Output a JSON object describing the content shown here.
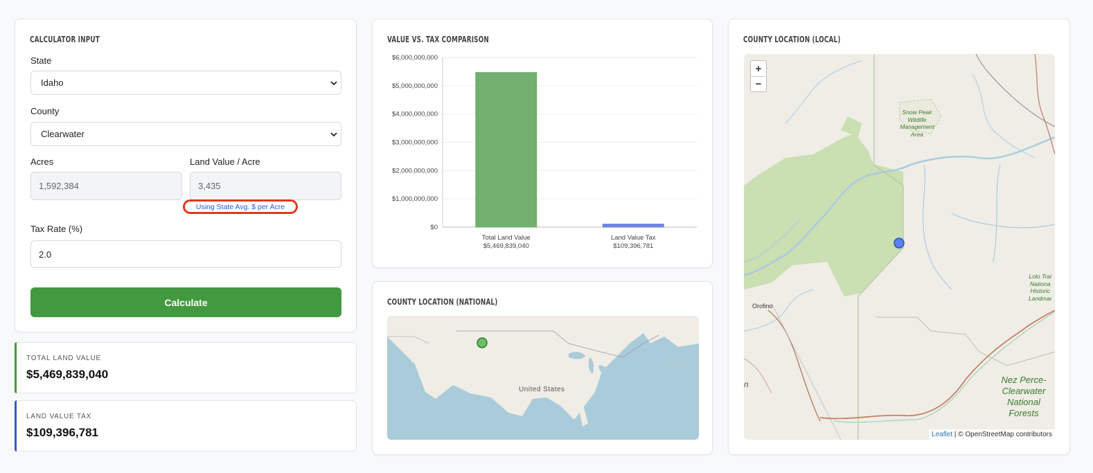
{
  "input": {
    "title": "CALCULATOR INPUT",
    "state_label": "State",
    "state_value": "Idaho",
    "county_label": "County",
    "county_value": "Clearwater",
    "acres_label": "Acres",
    "acres_value": "1,592,384",
    "lvpa_label": "Land Value / Acre",
    "lvpa_value": "3,435",
    "lvpa_note": "Using State Avg. $ per Acre",
    "tax_label": "Tax Rate (%)",
    "tax_value": "2.0",
    "calc_label": "Calculate"
  },
  "results": {
    "total_label": "TOTAL LAND VALUE",
    "total_value": "$5,469,839,040",
    "tax_label": "LAND VALUE TAX",
    "tax_value": "$109,396,781"
  },
  "comparison": {
    "title": "VALUE VS. TAX COMPARISON"
  },
  "chart_data": {
    "type": "bar",
    "categories": [
      "Total Land Value",
      "Land Value Tax"
    ],
    "category_sublabels": [
      "$5,469,839,040",
      "$109,396,781"
    ],
    "values": [
      5469839040,
      109396781
    ],
    "colors": [
      "#71b06f",
      "#6f84e3"
    ],
    "ylim": [
      0,
      6000000000
    ],
    "yticks": [
      "$0",
      "$1,000,000,000",
      "$2,000,000,000",
      "$3,000,000,000",
      "$4,000,000,000",
      "$5,000,000,000",
      "$6,000,000,000"
    ],
    "ytick_values": [
      0,
      1000000000,
      2000000000,
      3000000000,
      4000000000,
      5000000000,
      6000000000
    ],
    "grid": true
  },
  "national": {
    "title": "COUNTY LOCATION (NATIONAL)",
    "country_label": "United States"
  },
  "local": {
    "title": "COUNTY LOCATION (LOCAL)",
    "zoom_in": "+",
    "zoom_out": "−",
    "labels": {
      "snow_peak": "Snow Peak\nWildlife\nManagement\nArea",
      "orofino": "Orofino",
      "lolo": "Lolo Trai\nNationa\nHistoric\nLandmar",
      "nez_perce": "Nez Perce-\nClearwater\nNational\nForests",
      "edge": "n"
    },
    "attribution_link": "Leaflet",
    "attribution_text": " | © OpenStreetMap contributors"
  },
  "colors": {
    "accent_green": "#43993f",
    "tax_blue": "#6f84e3",
    "note_outline": "#dd3a1f"
  }
}
